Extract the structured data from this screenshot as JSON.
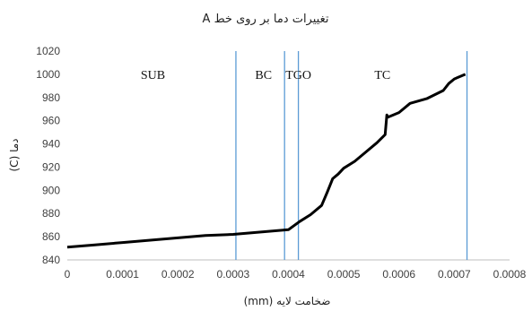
{
  "chart_data": {
    "type": "line",
    "title": "تغییرات دما بر روی خط A",
    "xlabel": "ضخامت لایه (mm)",
    "ylabel": "دما (C)",
    "xlim": [
      0,
      0.0008
    ],
    "ylim": [
      840,
      1020
    ],
    "xticks": [
      "0",
      "0.0001",
      "0.0002",
      "0.0003",
      "0.0004",
      "0.0005",
      "0.0006",
      "0.0007",
      "0.0008"
    ],
    "yticks": [
      "840",
      "860",
      "880",
      "900",
      "920",
      "940",
      "960",
      "980",
      "1000",
      "1020"
    ],
    "grid": false,
    "series": [
      {
        "x": [
          0,
          5e-05,
          0.0001,
          0.00015,
          0.0002,
          0.00025,
          0.0003,
          0.00035,
          0.0004,
          0.00042,
          0.00044,
          0.00046,
          0.00047,
          0.000475,
          0.00048,
          0.00049,
          0.0005,
          0.00052,
          0.00054,
          0.00056,
          0.000575,
          0.000578,
          0.00058,
          0.0006,
          0.00062,
          0.00065,
          0.00068,
          0.00069,
          0.0007,
          0.00072
        ],
        "y": [
          851,
          853,
          855,
          857,
          859,
          861,
          862,
          864,
          866,
          873,
          879,
          887,
          898,
          904,
          910,
          914,
          919,
          925,
          933,
          941,
          948,
          965,
          963,
          967,
          975,
          979,
          986,
          992,
          996,
          1000
        ]
      }
    ],
    "vlines": [
      0.000305,
      0.000393,
      0.000418,
      0.000723
    ],
    "regions": [
      {
        "label": "SUB",
        "x": 0.000155,
        "y": 1000
      },
      {
        "label": "BC",
        "x": 0.000355,
        "y": 1000
      },
      {
        "label": "TGO",
        "x": 0.000418,
        "y": 1000
      },
      {
        "label": "TC",
        "x": 0.00057,
        "y": 1000
      }
    ],
    "colors": {
      "line": "#000000",
      "vline": "#5b9bd5",
      "axis": "#bfbfbf"
    }
  }
}
